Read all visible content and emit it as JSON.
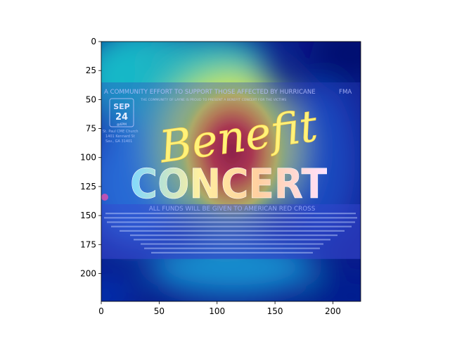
{
  "figure": {
    "x_axis": {
      "range": [
        0,
        224
      ],
      "ticks": [
        0,
        50,
        100,
        150,
        200
      ]
    },
    "y_axis": {
      "range": [
        0,
        224
      ],
      "ticks": [
        0,
        25,
        50,
        75,
        100,
        125,
        150,
        175,
        200
      ],
      "inverted": true
    },
    "colormap": "jet",
    "overlay": "attention heatmap"
  },
  "image_text": {
    "header": "A COMMUNITY EFFORT TO SUPPORT THOSE AFFECTED BY HURRICANE",
    "header_suffix": "FMA",
    "subheader": "THE COMMUNITY OF LAYNE IS PROUD TO PRESENT A BENEFIT CONCERT FOR THE VICTIMS",
    "month": "SEP",
    "day": "24",
    "time": "@6PM",
    "venue_lines": [
      "St. Paul CME Church",
      "1401 Kennard St",
      "Sav., GA 31401"
    ],
    "title_script": "Benefit",
    "title_block": "CONCERT",
    "funds_line": "ALL FUNDS WILL BE GIVEN TO AMERICAN RED CROSS"
  },
  "colors": {
    "dark_blue": "#00007f",
    "cyan": "#00c8d8",
    "yellow": "#f4f02a",
    "red": "#e0201a",
    "title_glow": "#ffe860"
  }
}
